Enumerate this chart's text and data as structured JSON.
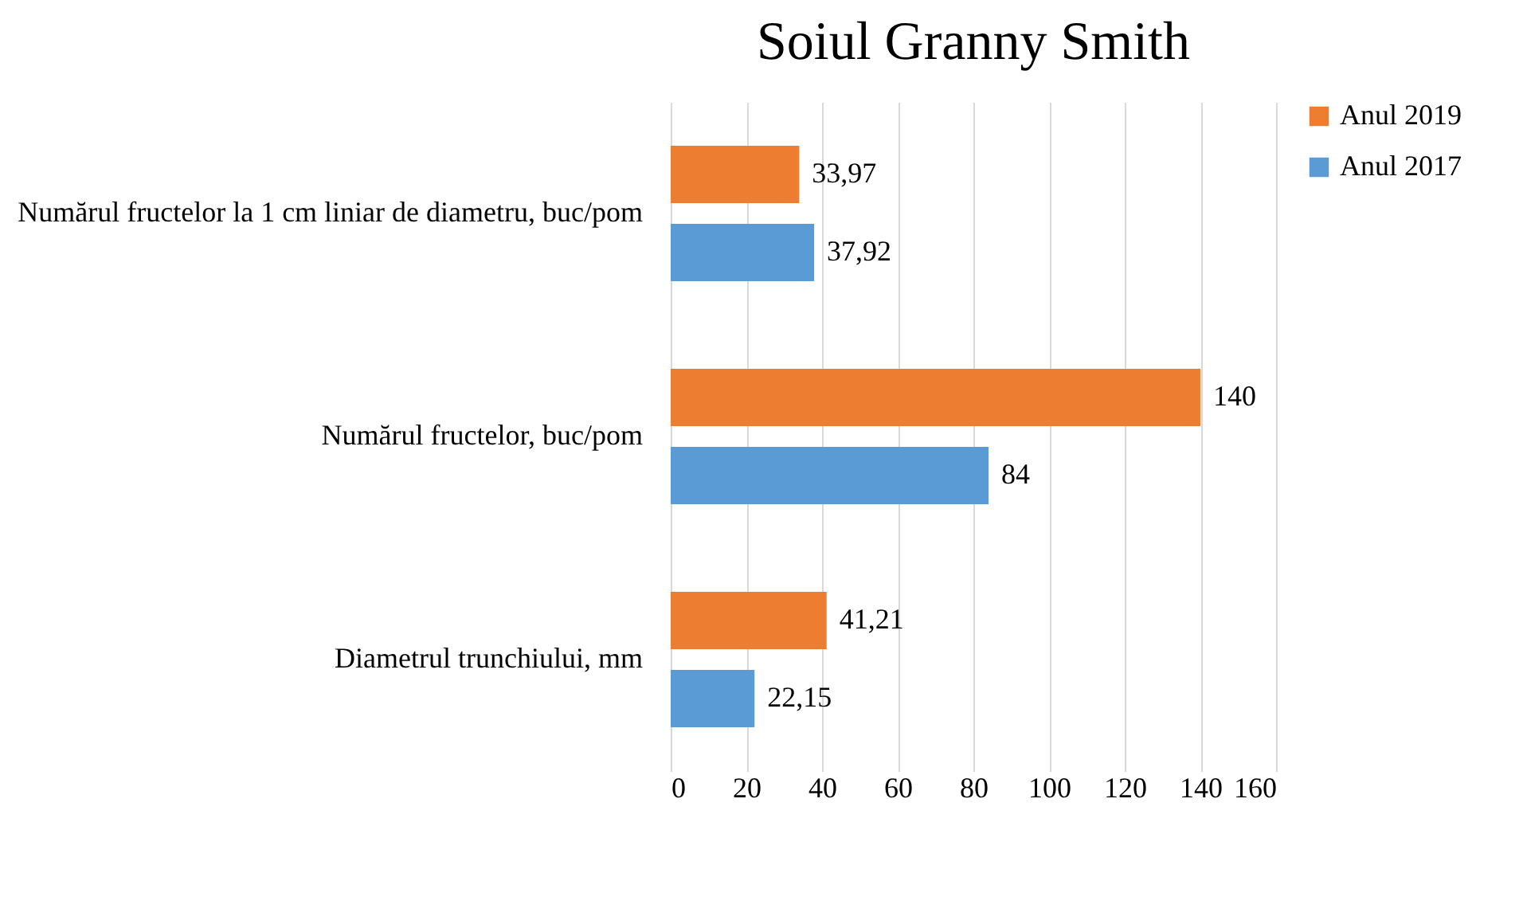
{
  "chart_data": {
    "type": "bar",
    "orientation": "horizontal",
    "title": "Soiul Granny Smith",
    "categories": [
      "Numărul fructelor la 1 cm liniar de diametru, buc/pom",
      "Numărul fructelor, buc/pom",
      "Diametrul trunchiului, mm"
    ],
    "series": [
      {
        "name": "Anul 2019",
        "color": "#ed7d31",
        "values": [
          33.97,
          140,
          41.21
        ],
        "value_labels": [
          "33,97",
          "140",
          "41,21"
        ]
      },
      {
        "name": "Anul 2017",
        "color": "#5b9bd5",
        "values": [
          37.92,
          84,
          22.15
        ],
        "value_labels": [
          "37,92",
          "84",
          "22,15"
        ]
      }
    ],
    "xlim": [
      0,
      160
    ],
    "xticks": [
      0,
      20,
      40,
      60,
      80,
      100,
      120,
      140,
      160
    ],
    "grid": "x",
    "legend": "right"
  }
}
